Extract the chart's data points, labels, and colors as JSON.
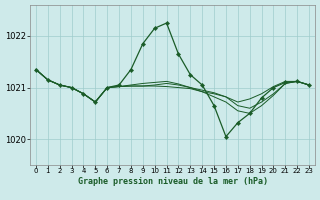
{
  "title": "Graphe pression niveau de la mer (hPa)",
  "background_color": "#ceeaea",
  "grid_color": "#a0cccc",
  "line_color": "#1a5c28",
  "marker_color": "#1a5c28",
  "xlim": [
    -0.5,
    23.5
  ],
  "ylim": [
    1019.5,
    1022.6
  ],
  "yticks": [
    1020,
    1021,
    1022
  ],
  "xticks": [
    0,
    1,
    2,
    3,
    4,
    5,
    6,
    7,
    8,
    9,
    10,
    11,
    12,
    13,
    14,
    15,
    16,
    17,
    18,
    19,
    20,
    21,
    22,
    23
  ],
  "series": [
    {
      "x": [
        0,
        1,
        2,
        3,
        4,
        5,
        6,
        7,
        8,
        9,
        10,
        11,
        12,
        13,
        14,
        15,
        16,
        17,
        18,
        19,
        20,
        21,
        22,
        23
      ],
      "y": [
        1021.35,
        1021.15,
        1021.05,
        1021.0,
        1020.88,
        1020.72,
        1021.0,
        1021.05,
        1021.35,
        1021.85,
        1022.15,
        1022.25,
        1021.65,
        1021.25,
        1021.05,
        1020.65,
        1020.05,
        1020.32,
        1020.5,
        1020.8,
        1021.0,
        1021.1,
        1021.12,
        1021.05
      ],
      "with_markers": true
    },
    {
      "x": [
        0,
        1,
        2,
        3,
        4,
        5,
        6,
        7,
        8,
        9,
        10,
        11,
        12,
        13,
        14,
        15,
        16,
        17,
        18,
        19,
        20,
        21,
        22,
        23
      ],
      "y": [
        1021.35,
        1021.15,
        1021.05,
        1021.0,
        1020.88,
        1020.72,
        1021.0,
        1021.02,
        1021.03,
        1021.03,
        1021.03,
        1021.02,
        1021.0,
        1020.98,
        1020.92,
        1020.88,
        1020.82,
        1020.72,
        1020.78,
        1020.88,
        1021.02,
        1021.12,
        1021.12,
        1021.05
      ],
      "with_markers": false
    },
    {
      "x": [
        0,
        1,
        2,
        3,
        4,
        5,
        6,
        7,
        8,
        9,
        10,
        11,
        12,
        13,
        14,
        15,
        16,
        17,
        18,
        19,
        20,
        21,
        22,
        23
      ],
      "y": [
        1021.35,
        1021.15,
        1021.05,
        1021.0,
        1020.88,
        1020.72,
        1021.0,
        1021.02,
        1021.03,
        1021.03,
        1021.05,
        1021.08,
        1021.05,
        1021.0,
        1020.95,
        1020.9,
        1020.82,
        1020.65,
        1020.6,
        1020.72,
        1020.88,
        1021.08,
        1021.12,
        1021.05
      ],
      "with_markers": false
    },
    {
      "x": [
        0,
        1,
        2,
        3,
        4,
        5,
        6,
        7,
        8,
        9,
        10,
        11,
        12,
        13,
        14,
        15,
        16,
        17,
        18,
        19,
        20,
        21,
        22,
        23
      ],
      "y": [
        1021.35,
        1021.15,
        1021.05,
        1021.0,
        1020.88,
        1020.72,
        1021.0,
        1021.02,
        1021.05,
        1021.08,
        1021.1,
        1021.12,
        1021.07,
        1021.0,
        1020.92,
        1020.82,
        1020.72,
        1020.55,
        1020.5,
        1020.65,
        1020.85,
        1021.08,
        1021.12,
        1021.05
      ],
      "with_markers": false
    }
  ]
}
